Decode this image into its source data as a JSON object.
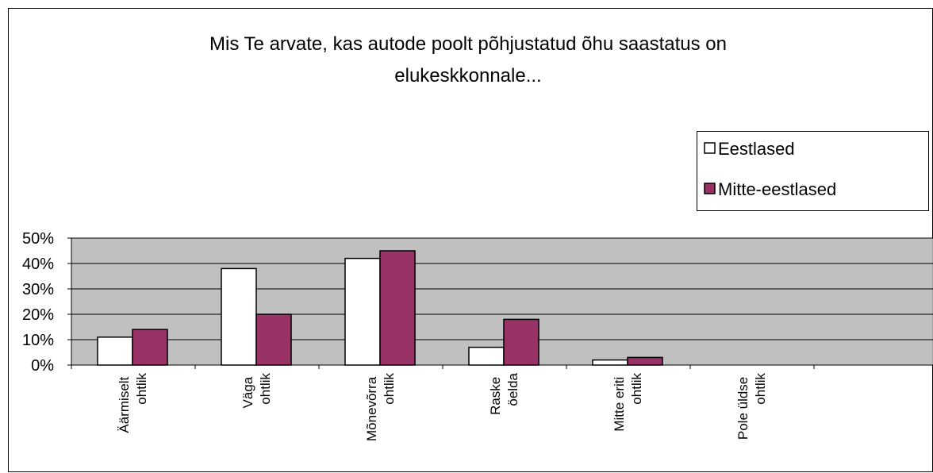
{
  "chart_data": {
    "type": "bar",
    "title": "Mis Te arvate, kas autode poolt põhjustatud õhu saastatus on elukeskkonnale...",
    "categories": [
      "Äärmiselt ohtlik",
      "Väga ohtlik",
      "Mõnevõrra ohtlik",
      "Raske öelda",
      "Mitte eriti ohtlik",
      "Pole üldse ohtlik",
      null
    ],
    "series": [
      {
        "name": "Eestlased",
        "color": "#ffffff",
        "values": [
          11,
          38,
          42,
          7,
          2,
          0,
          null
        ]
      },
      {
        "name": "Mitte-eestlased",
        "color": "#993366",
        "values": [
          14,
          20,
          45,
          18,
          3,
          0,
          null
        ]
      }
    ],
    "ylim": [
      0,
      50
    ],
    "yticks": [
      {
        "value": 0,
        "label": "0%"
      },
      {
        "value": 10,
        "label": "10%"
      },
      {
        "value": 20,
        "label": "20%"
      },
      {
        "value": 30,
        "label": "30%"
      },
      {
        "value": 40,
        "label": "40%"
      },
      {
        "value": 50,
        "label": "50%"
      }
    ],
    "grid": true,
    "legend": "upper right"
  }
}
